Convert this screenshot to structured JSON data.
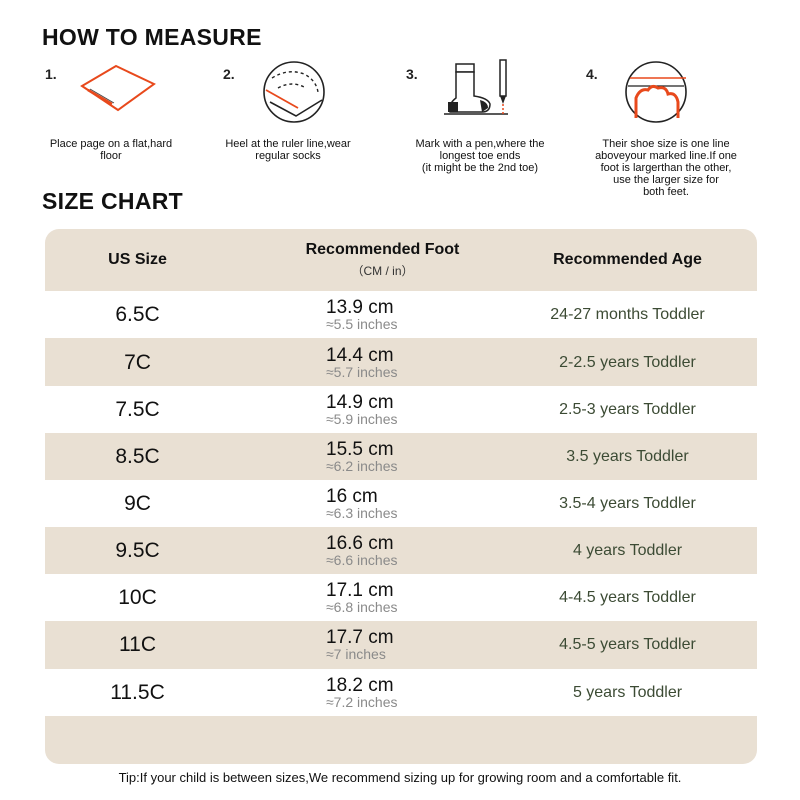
{
  "how_to_measure": {
    "title": "HOW TO MEASURE",
    "steps": [
      {
        "num": "1.",
        "text": "Place page on a flat,hard\nfloor",
        "icon": "paper-sheet-icon"
      },
      {
        "num": "2.",
        "text": "Heel at the ruler line,wear\nregular socks",
        "icon": "heel-on-line-icon"
      },
      {
        "num": "3.",
        "text": "Mark with a pen,where the\nlongest toe ends\n(it might be the 2nd toe)",
        "icon": "sock-and-pen-icon"
      },
      {
        "num": "4.",
        "text": "Their shoe size is one line\naboveyour marked line.If one\nfoot is largerthan the other,\nuse the larger size for\nboth feet.",
        "icon": "toe-lines-icon"
      }
    ]
  },
  "size_chart": {
    "title": "SIZE CHART",
    "headers": {
      "us_size": "US Size",
      "foot": "Recommended Foot",
      "foot_sub": "（CM / in）",
      "age": "Recommended Age"
    },
    "rows": [
      {
        "size": "6.5C",
        "cm": "13.9 cm",
        "inch": "≈5.5 inches",
        "age": "24-27 months Toddler"
      },
      {
        "size": "7C",
        "cm": "14.4 cm",
        "inch": "≈5.7 inches",
        "age": "2-2.5 years Toddler"
      },
      {
        "size": "7.5C",
        "cm": "14.9 cm",
        "inch": "≈5.9 inches",
        "age": "2.5-3 years Toddler"
      },
      {
        "size": "8.5C",
        "cm": "15.5 cm",
        "inch": "≈6.2 inches",
        "age": "3.5 years Toddler"
      },
      {
        "size": "9C",
        "cm": "16 cm",
        "inch": "≈6.3 inches",
        "age": "3.5-4 years Toddler"
      },
      {
        "size": "9.5C",
        "cm": "16.6 cm",
        "inch": "≈6.6 inches",
        "age": "4 years Toddler"
      },
      {
        "size": "10C",
        "cm": "17.1 cm",
        "inch": "≈6.8 inches",
        "age": "4-4.5 years Toddler"
      },
      {
        "size": "11C",
        "cm": "17.7 cm",
        "inch": "≈7 inches",
        "age": "4.5-5 years Toddler"
      },
      {
        "size": "11.5C",
        "cm": "18.2 cm",
        "inch": "≈7.2 inches",
        "age": "5 years Toddler"
      }
    ]
  },
  "tip": "Tip:If your child is between sizes,We recommend sizing up for growing room and a comfortable fit.",
  "colors": {
    "table_tan": "#e9e0d3",
    "accent_orange": "#e8491c",
    "age_text": "#3c4b34"
  }
}
